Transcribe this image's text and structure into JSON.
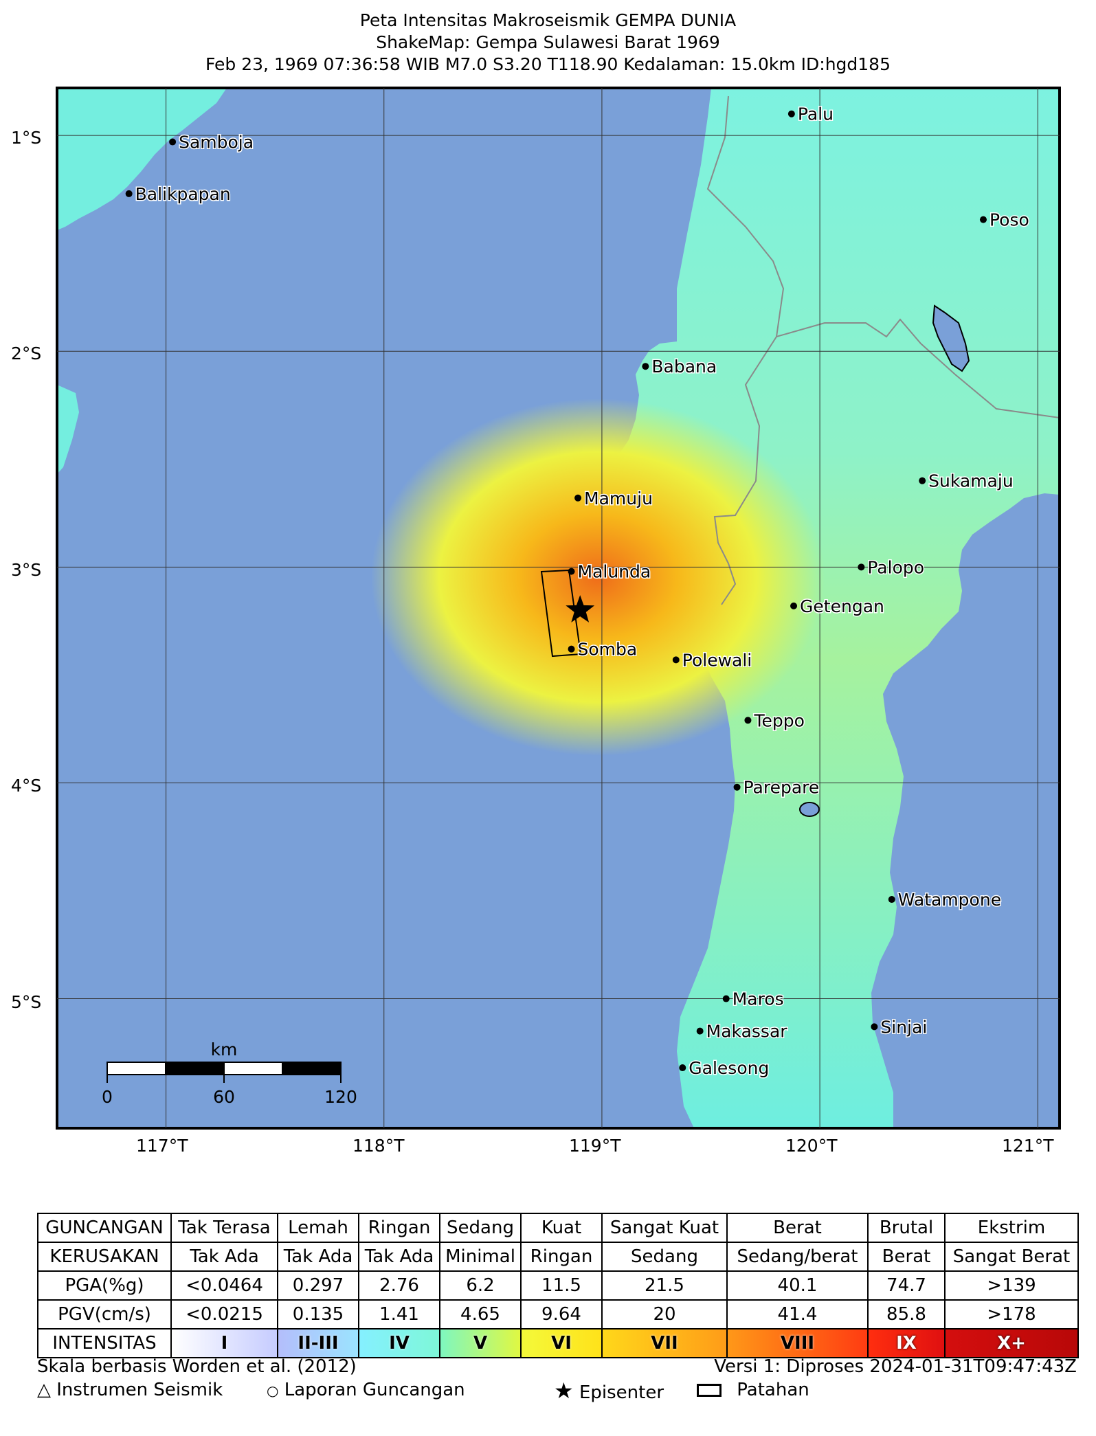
{
  "title": {
    "line1": "Peta Intensitas Makroseismik GEMPA DUNIA",
    "line2": "ShakeMap: Gempa Sulawesi Barat 1969",
    "line3": "Feb 23, 1969 07:36:58 WIB M7.0 S3.20 T118.90 Kedalaman: 15.0km ID:hgd185"
  },
  "map": {
    "lat_labels": [
      "1°S",
      "2°S",
      "3°S",
      "4°S",
      "5°S"
    ],
    "lon_labels": [
      "117°T",
      "118°T",
      "119°T",
      "120°T",
      "121°T"
    ],
    "lat_range": [
      -5.6,
      -0.78
    ],
    "lon_range": [
      116.5,
      121.1
    ],
    "colors": {
      "sea": "#7aa0d8",
      "intensity_IV": "#6ef2e6",
      "intensity_V": "#9cf5a0",
      "intensity_VI": "#ecf242",
      "intensity_VII": "#f7b81a",
      "intensity_VIII": "#ef6c1a"
    },
    "cities": [
      {
        "name": "Palu",
        "lon": 119.87,
        "lat": -0.9
      },
      {
        "name": "Samboja",
        "lon": 117.03,
        "lat": -1.03
      },
      {
        "name": "Balikpapan",
        "lon": 116.83,
        "lat": -1.27
      },
      {
        "name": "Poso",
        "lon": 120.75,
        "lat": -1.39
      },
      {
        "name": "Babana",
        "lon": 119.2,
        "lat": -2.07
      },
      {
        "name": "Sukamaju",
        "lon": 120.47,
        "lat": -2.6
      },
      {
        "name": "Mamuju",
        "lon": 118.89,
        "lat": -2.68
      },
      {
        "name": "Palopo",
        "lon": 120.19,
        "lat": -3.0
      },
      {
        "name": "Malunda",
        "lon": 118.86,
        "lat": -3.02
      },
      {
        "name": "Getengan",
        "lon": 119.88,
        "lat": -3.18
      },
      {
        "name": "Somba",
        "lon": 118.86,
        "lat": -3.38
      },
      {
        "name": "Polewali",
        "lon": 119.34,
        "lat": -3.43
      },
      {
        "name": "Teppo",
        "lon": 119.67,
        "lat": -3.71
      },
      {
        "name": "Parepare",
        "lon": 119.62,
        "lat": -4.02
      },
      {
        "name": "Watampone",
        "lon": 120.33,
        "lat": -4.54
      },
      {
        "name": "Maros",
        "lon": 119.57,
        "lat": -5.0
      },
      {
        "name": "Sinjai",
        "lon": 120.25,
        "lat": -5.13
      },
      {
        "name": "Makassar",
        "lon": 119.45,
        "lat": -5.15
      },
      {
        "name": "Galesong",
        "lon": 119.37,
        "lat": -5.32
      }
    ],
    "epicenter": {
      "lon": 118.9,
      "lat": -3.2
    },
    "scale_bar": {
      "unit": "km",
      "labels": [
        "0",
        "60",
        "120"
      ]
    }
  },
  "legend": {
    "rows": [
      {
        "head": "GUNCANGAN",
        "cells": [
          "Tak Terasa",
          "Lemah",
          "Ringan",
          "Sedang",
          "Kuat",
          "Sangat Kuat",
          "Berat",
          "Brutal",
          "Ekstrim"
        ]
      },
      {
        "head": "KERUSAKAN",
        "cells": [
          "Tak Ada",
          "Tak Ada",
          "Tak Ada",
          "Minimal",
          "Ringan",
          "Sedang",
          "Sedang/berat",
          "Berat",
          "Sangat Berat"
        ]
      },
      {
        "head": "PGA(%g)",
        "cells": [
          "<0.0464",
          "0.297",
          "2.76",
          "6.2",
          "11.5",
          "21.5",
          "40.1",
          "74.7",
          ">139"
        ]
      },
      {
        "head": "PGV(cm/s)",
        "cells": [
          "<0.0215",
          "0.135",
          "1.41",
          "4.65",
          "9.64",
          "20",
          "41.4",
          "85.8",
          ">178"
        ]
      }
    ],
    "intensity_head": "INTENSITAS",
    "intensity": [
      {
        "label": "I",
        "from": "#ffffff",
        "to": "#c6ccff"
      },
      {
        "label": "II-III",
        "from": "#b4befb",
        "to": "#9be3ff"
      },
      {
        "label": "IV",
        "from": "#85f0ff",
        "to": "#7ef7d8"
      },
      {
        "label": "V",
        "from": "#7ef7c0",
        "to": "#e0f842"
      },
      {
        "label": "VI",
        "from": "#f4f93a",
        "to": "#ffe21a"
      },
      {
        "label": "VII",
        "from": "#ffd71a",
        "to": "#ff9c18"
      },
      {
        "label": "VIII",
        "from": "#ff9818",
        "to": "#ff3c12"
      },
      {
        "label": "IX",
        "from": "#ff2e0f",
        "to": "#e01010"
      },
      {
        "label": "X+",
        "from": "#d40e0e",
        "to": "#b80808"
      }
    ]
  },
  "footer": {
    "scale_note": "Skala berbasis Worden et al. (2012)",
    "version": "Versi 1: Diproses 2024-01-31T09:47:43Z",
    "symbols": [
      {
        "icon": "△",
        "label": "Instrumen Seismik"
      },
      {
        "icon": "○",
        "label": "Laporan Guncangan"
      },
      {
        "icon": "★",
        "label": "Episenter"
      },
      {
        "icon": "▭",
        "label": "Patahan"
      }
    ]
  }
}
